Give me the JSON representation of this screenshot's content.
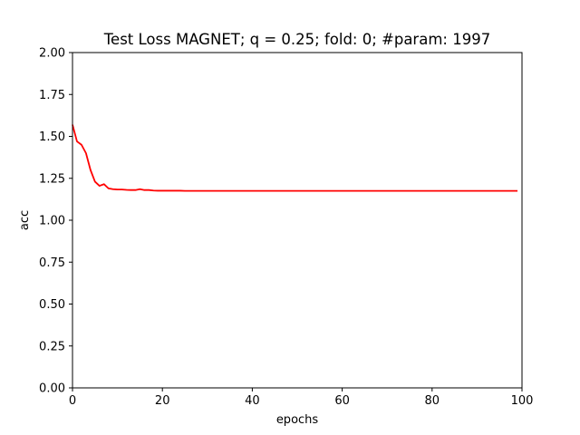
{
  "chart_data": {
    "type": "line",
    "title": "Test Loss MAGNET; q = 0.25; fold: 0; #param: 1997",
    "xlabel": "epochs",
    "ylabel": "acc",
    "xlim": [
      0,
      100
    ],
    "ylim": [
      0.0,
      2.0
    ],
    "xticks": [
      0,
      20,
      40,
      60,
      80,
      100
    ],
    "xtick_labels": [
      "0",
      "20",
      "40",
      "60",
      "80",
      "100"
    ],
    "yticks": [
      0.0,
      0.25,
      0.5,
      0.75,
      1.0,
      1.25,
      1.5,
      1.75,
      2.0
    ],
    "ytick_labels": [
      "0.00",
      "0.25",
      "0.50",
      "0.75",
      "1.00",
      "1.25",
      "1.50",
      "1.75",
      "2.00"
    ],
    "grid": false,
    "legend": "none",
    "series": [
      {
        "color": "#ff0000",
        "x": [
          0,
          1,
          2,
          3,
          4,
          5,
          6,
          7,
          8,
          9,
          10,
          11,
          12,
          13,
          14,
          15,
          16,
          17,
          18,
          19,
          20,
          21,
          22,
          23,
          24,
          25,
          26,
          27,
          28,
          29,
          30,
          31,
          32,
          33,
          34,
          35,
          36,
          37,
          38,
          39,
          40,
          41,
          42,
          43,
          44,
          45,
          46,
          47,
          48,
          49,
          50,
          51,
          52,
          53,
          54,
          55,
          56,
          57,
          58,
          59,
          60,
          61,
          62,
          63,
          64,
          65,
          66,
          67,
          68,
          69,
          70,
          71,
          72,
          73,
          74,
          75,
          76,
          77,
          78,
          79,
          80,
          81,
          82,
          83,
          84,
          85,
          86,
          87,
          88,
          89,
          90,
          91,
          92,
          93,
          94,
          95,
          96,
          97,
          98,
          99
        ],
        "y": [
          1.57,
          1.47,
          1.45,
          1.4,
          1.3,
          1.23,
          1.205,
          1.215,
          1.19,
          1.185,
          1.183,
          1.183,
          1.181,
          1.18,
          1.18,
          1.185,
          1.18,
          1.18,
          1.177,
          1.176,
          1.176,
          1.176,
          1.176,
          1.176,
          1.176,
          1.175,
          1.175,
          1.175,
          1.175,
          1.175,
          1.175,
          1.175,
          1.175,
          1.175,
          1.175,
          1.175,
          1.175,
          1.175,
          1.175,
          1.175,
          1.175,
          1.175,
          1.175,
          1.175,
          1.175,
          1.175,
          1.175,
          1.175,
          1.175,
          1.175,
          1.175,
          1.175,
          1.175,
          1.175,
          1.175,
          1.175,
          1.175,
          1.175,
          1.175,
          1.175,
          1.175,
          1.175,
          1.175,
          1.175,
          1.175,
          1.175,
          1.175,
          1.175,
          1.175,
          1.175,
          1.175,
          1.175,
          1.175,
          1.175,
          1.175,
          1.175,
          1.175,
          1.175,
          1.175,
          1.175,
          1.175,
          1.175,
          1.175,
          1.175,
          1.175,
          1.175,
          1.175,
          1.175,
          1.175,
          1.175,
          1.175,
          1.175,
          1.175,
          1.175,
          1.175,
          1.175,
          1.175,
          1.175,
          1.175,
          1.175
        ]
      }
    ]
  }
}
